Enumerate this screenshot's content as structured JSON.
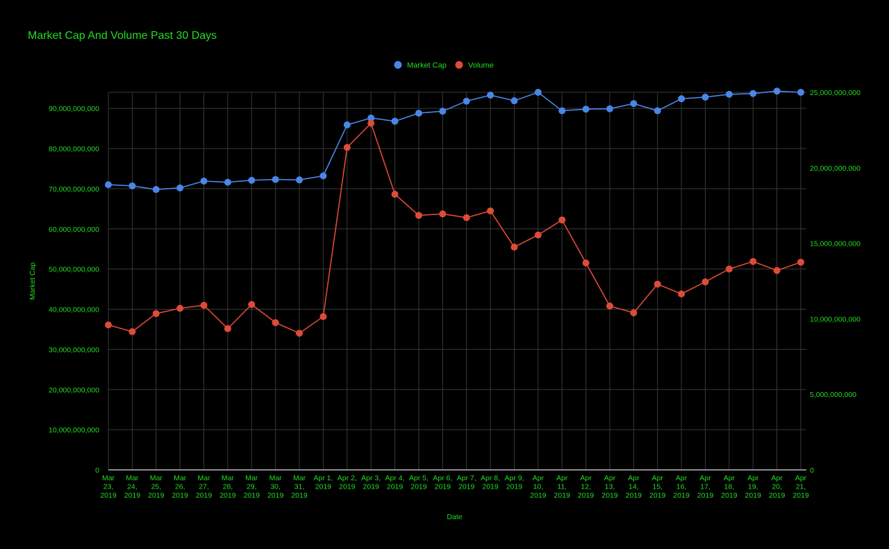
{
  "colors": {
    "background": "#000000",
    "text": "#22dd22",
    "grid": "#3a3a3a",
    "axis_line": "#bbbbbb",
    "market_cap": "#4a86e8",
    "volume": "#dd4b39"
  },
  "chart_data": {
    "type": "line",
    "title": "Market Cap And Volume Past 30 Days",
    "xlabel": "Date",
    "ylabel": "Market Cap",
    "ylabel_right": "",
    "legend_position": "top",
    "grid": true,
    "categories": [
      [
        "Mar",
        "23,",
        "2019"
      ],
      [
        "Mar",
        "24,",
        "2019"
      ],
      [
        "Mar",
        "25,",
        "2019"
      ],
      [
        "Mar",
        "26,",
        "2019"
      ],
      [
        "Mar",
        "27,",
        "2019"
      ],
      [
        "Mar",
        "28,",
        "2019"
      ],
      [
        "Mar",
        "29,",
        "2019"
      ],
      [
        "Mar",
        "30,",
        "2019"
      ],
      [
        "Mar",
        "31,",
        "2019"
      ],
      [
        "Apr 1,",
        "2019"
      ],
      [
        "Apr 2,",
        "2019"
      ],
      [
        "Apr 3,",
        "2019"
      ],
      [
        "Apr 4,",
        "2019"
      ],
      [
        "Apr 5,",
        "2019"
      ],
      [
        "Apr 6,",
        "2019"
      ],
      [
        "Apr 7,",
        "2019"
      ],
      [
        "Apr 8,",
        "2019"
      ],
      [
        "Apr 9,",
        "2019"
      ],
      [
        "Apr",
        "10,",
        "2019"
      ],
      [
        "Apr",
        "11,",
        "2019"
      ],
      [
        "Apr",
        "12,",
        "2019"
      ],
      [
        "Apr",
        "13,",
        "2019"
      ],
      [
        "Apr",
        "14,",
        "2019"
      ],
      [
        "Apr",
        "15,",
        "2019"
      ],
      [
        "Apr",
        "16,",
        "2019"
      ],
      [
        "Apr",
        "17,",
        "2019"
      ],
      [
        "Apr",
        "18,",
        "2019"
      ],
      [
        "Apr",
        "19,",
        "2019"
      ],
      [
        "Apr",
        "20,",
        "2019"
      ],
      [
        "Apr",
        "21,",
        "2019"
      ]
    ],
    "left_axis": {
      "min": 0,
      "max": 94000000000,
      "ticks": [
        0,
        10000000000,
        20000000000,
        30000000000,
        40000000000,
        50000000000,
        60000000000,
        70000000000,
        80000000000,
        90000000000
      ],
      "tick_labels": [
        "0",
        "10,000,000,000",
        "20,000,000,000",
        "30,000,000,000",
        "40,000,000,000",
        "50,000,000,000",
        "60,000,000,000",
        "70,000,000,000",
        "80,000,000,000",
        "90,000,000,000"
      ]
    },
    "right_axis": {
      "min": 0,
      "max": 25000000000,
      "ticks": [
        0,
        5000000000,
        10000000000,
        15000000000,
        20000000000,
        25000000000
      ],
      "tick_labels": [
        "0",
        "5,000,000,000",
        "10,000,000,000",
        "15,000,000,000",
        "20,000,000,000",
        "25,000,000,000"
      ]
    },
    "series": [
      {
        "name": "Market Cap",
        "axis": "left",
        "values": [
          71000000000,
          70700000000,
          69800000000,
          70200000000,
          71900000000,
          71600000000,
          72100000000,
          72300000000,
          72200000000,
          73200000000,
          85900000000,
          87600000000,
          86800000000,
          88800000000,
          89300000000,
          91800000000,
          93300000000,
          91900000000,
          94000000000,
          89400000000,
          89800000000,
          89900000000,
          91200000000,
          89400000000,
          92400000000,
          92800000000,
          93500000000,
          93700000000,
          94300000000,
          94000000000
        ]
      },
      {
        "name": "Volume",
        "axis": "right",
        "values": [
          9600000000,
          9150000000,
          10350000000,
          10700000000,
          10900000000,
          9350000000,
          10950000000,
          9750000000,
          9050000000,
          10150000000,
          21350000000,
          22950000000,
          18250000000,
          16850000000,
          16950000000,
          16700000000,
          17150000000,
          14750000000,
          15550000000,
          16550000000,
          13700000000,
          10850000000,
          10400000000,
          12300000000,
          11650000000,
          12450000000,
          13300000000,
          13800000000,
          13200000000,
          13750000000
        ]
      }
    ]
  }
}
